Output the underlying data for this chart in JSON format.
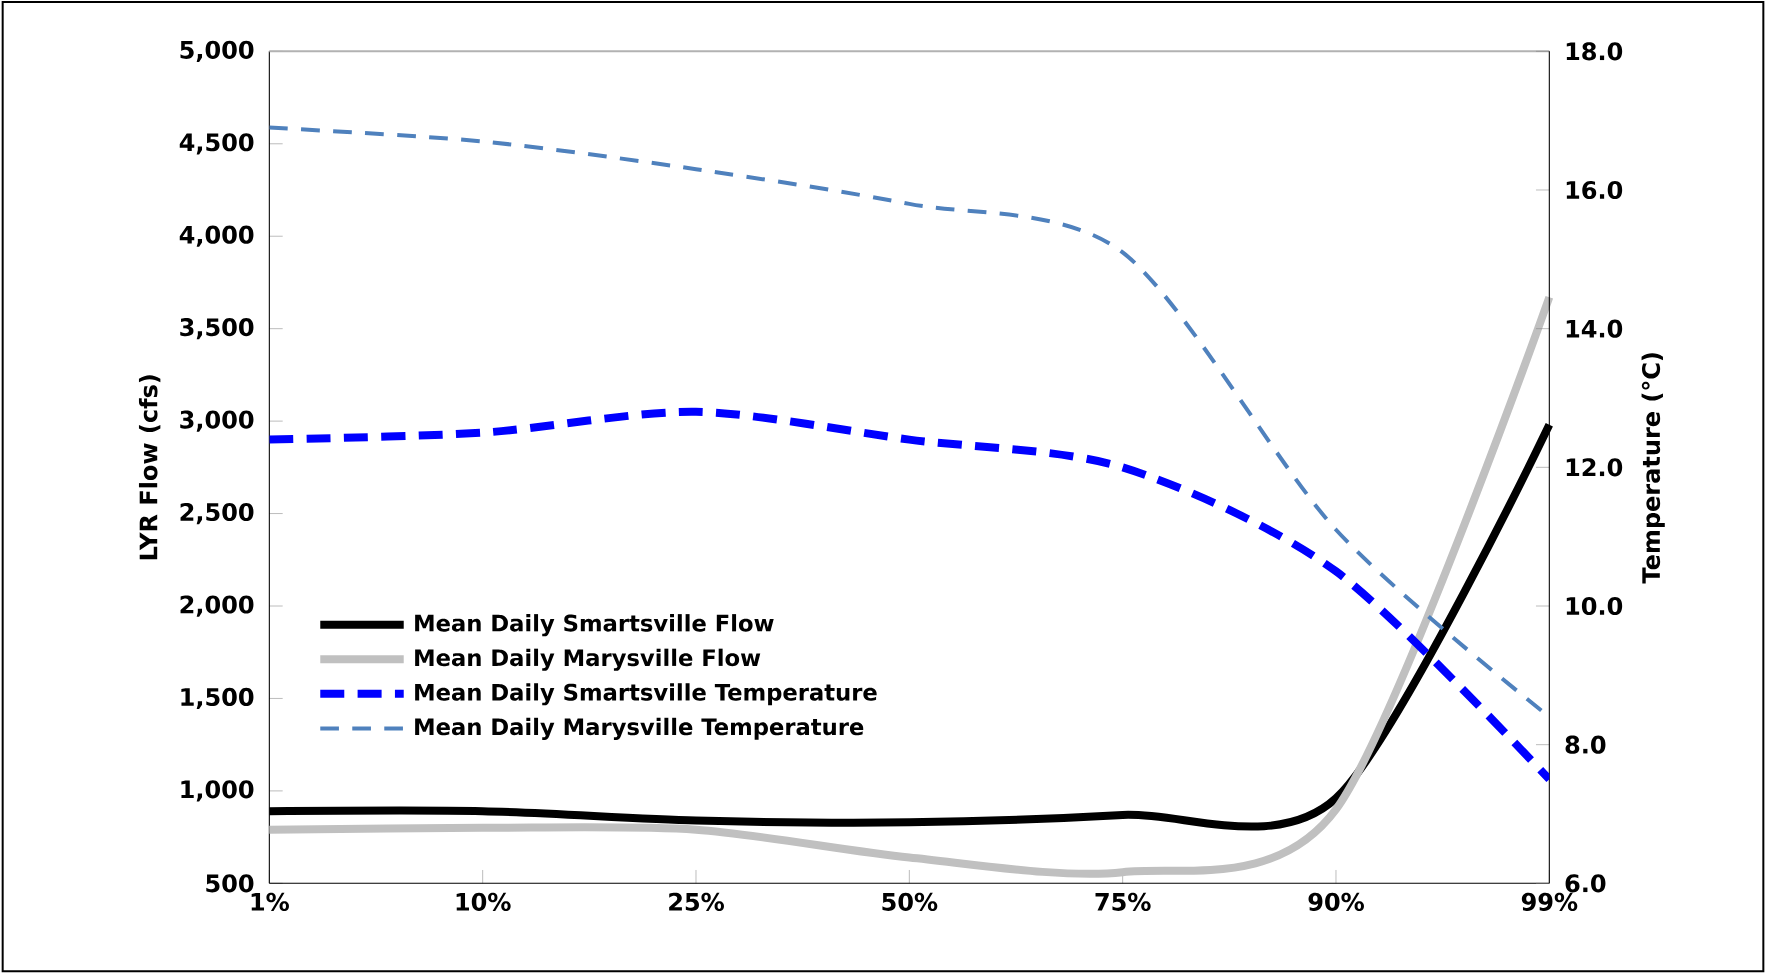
{
  "chart_data": {
    "type": "line",
    "xlabel": null,
    "ylabel": "LYR Flow (cfs)",
    "y2label": "Temperature (°C)",
    "categories": [
      "1%",
      "10%",
      "25%",
      "50%",
      "75%",
      "90%",
      "99%"
    ],
    "series": [
      {
        "name": "Mean Daily Smartsville Flow",
        "color": "#000000",
        "line_style": "solid",
        "values": [
          890,
          890,
          840,
          830,
          870,
          960,
          2980
        ]
      },
      {
        "name": "Mean Daily Marysville Flow",
        "color": "#c0c0c0",
        "line_style": "solid",
        "values": [
          790,
          800,
          790,
          640,
          560,
          900,
          3670
        ]
      },
      {
        "name": "Mean Daily Smartsville Temperature",
        "color": "#0000ff",
        "line_style": "dashed",
        "axis": "y2",
        "values": [
          12.4,
          12.5,
          12.8,
          12.4,
          12.0,
          10.5,
          7.5
        ]
      },
      {
        "name": "Mean Daily Marysville Temperature",
        "color": "#4f81bd",
        "line_style": "dashed",
        "axis": "y2",
        "values": [
          16.9,
          16.7,
          16.3,
          15.8,
          15.1,
          11.1,
          8.4
        ]
      }
    ],
    "ylim": [
      500,
      5000
    ],
    "yticks": [
      {
        "value": 500,
        "label": "500"
      },
      {
        "value": 1000,
        "label": "1,000"
      },
      {
        "value": 1500,
        "label": "1,500"
      },
      {
        "value": 2000,
        "label": "2,000"
      },
      {
        "value": 2500,
        "label": "2,500"
      },
      {
        "value": 3000,
        "label": "3,000"
      },
      {
        "value": 3500,
        "label": "3,500"
      },
      {
        "value": 4000,
        "label": "4,000"
      },
      {
        "value": 4500,
        "label": "4,500"
      },
      {
        "value": 5000,
        "label": "5,000"
      }
    ],
    "y2lim": [
      6,
      18
    ],
    "y2ticks": [
      {
        "value": 6,
        "label": "6.0"
      },
      {
        "value": 8,
        "label": "8.0"
      },
      {
        "value": 10,
        "label": "10.0"
      },
      {
        "value": 12,
        "label": "12.0"
      },
      {
        "value": 14,
        "label": "14.0"
      },
      {
        "value": 16,
        "label": "16.0"
      },
      {
        "value": 18,
        "label": "18.0"
      }
    ],
    "legend": "bottom left",
    "grid": false,
    "marker": "none"
  }
}
